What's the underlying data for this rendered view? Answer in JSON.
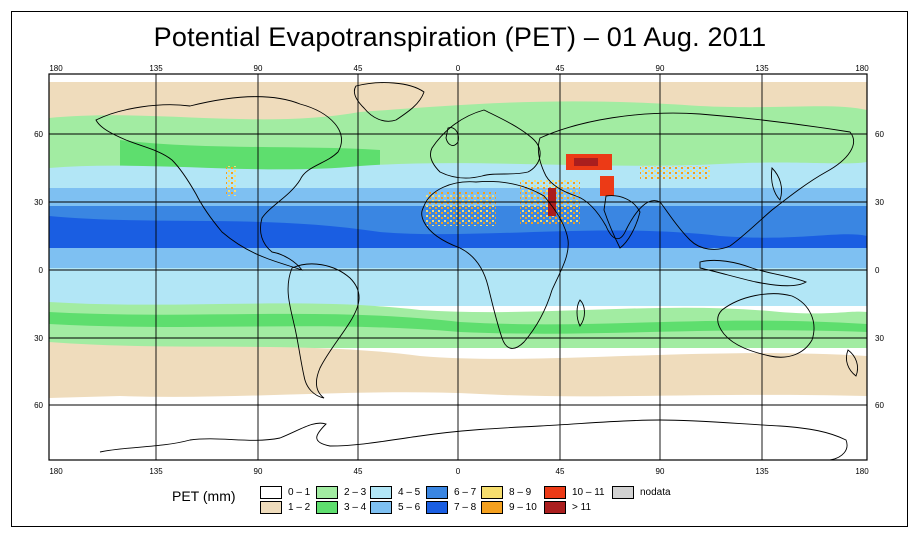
{
  "title": "Potential Evapotranspiration (PET) – 01 Aug. 2011",
  "axes": {
    "top_lon_labels": [
      "180",
      "135",
      "90",
      "45",
      "0",
      "45",
      "90",
      "135",
      "180"
    ],
    "bottom_lon_labels": [
      "180",
      "135",
      "90",
      "45",
      "0",
      "45",
      "90",
      "135",
      "180"
    ],
    "left_lat_labels": [
      "60",
      "30",
      "0",
      "30",
      "60"
    ],
    "right_lat_labels": [
      "60",
      "30",
      "0",
      "30",
      "60"
    ]
  },
  "legend": {
    "title": "PET (mm)",
    "items": [
      {
        "label": "0 – 1",
        "color": "#ffffff"
      },
      {
        "label": "1 – 2",
        "color": "#efdcbc"
      },
      {
        "label": "2 – 3",
        "color": "#a2eca2"
      },
      {
        "label": "3 – 4",
        "color": "#5ede6e"
      },
      {
        "label": "4 – 5",
        "color": "#b2e6f6"
      },
      {
        "label": "5 – 6",
        "color": "#7ec0f2"
      },
      {
        "label": "6 – 7",
        "color": "#3a86e2"
      },
      {
        "label": "7 – 8",
        "color": "#1a5ee2"
      },
      {
        "label": "8 – 9",
        "color": "#f6de6e"
      },
      {
        "label": "9 – 10",
        "color": "#f4a01e"
      },
      {
        "label": "10 – 11",
        "color": "#ec3a16"
      },
      {
        "label": "> 11",
        "color": "#aa1e1e"
      },
      {
        "label": "nodata",
        "color": "#d2d2d2"
      }
    ]
  }
}
